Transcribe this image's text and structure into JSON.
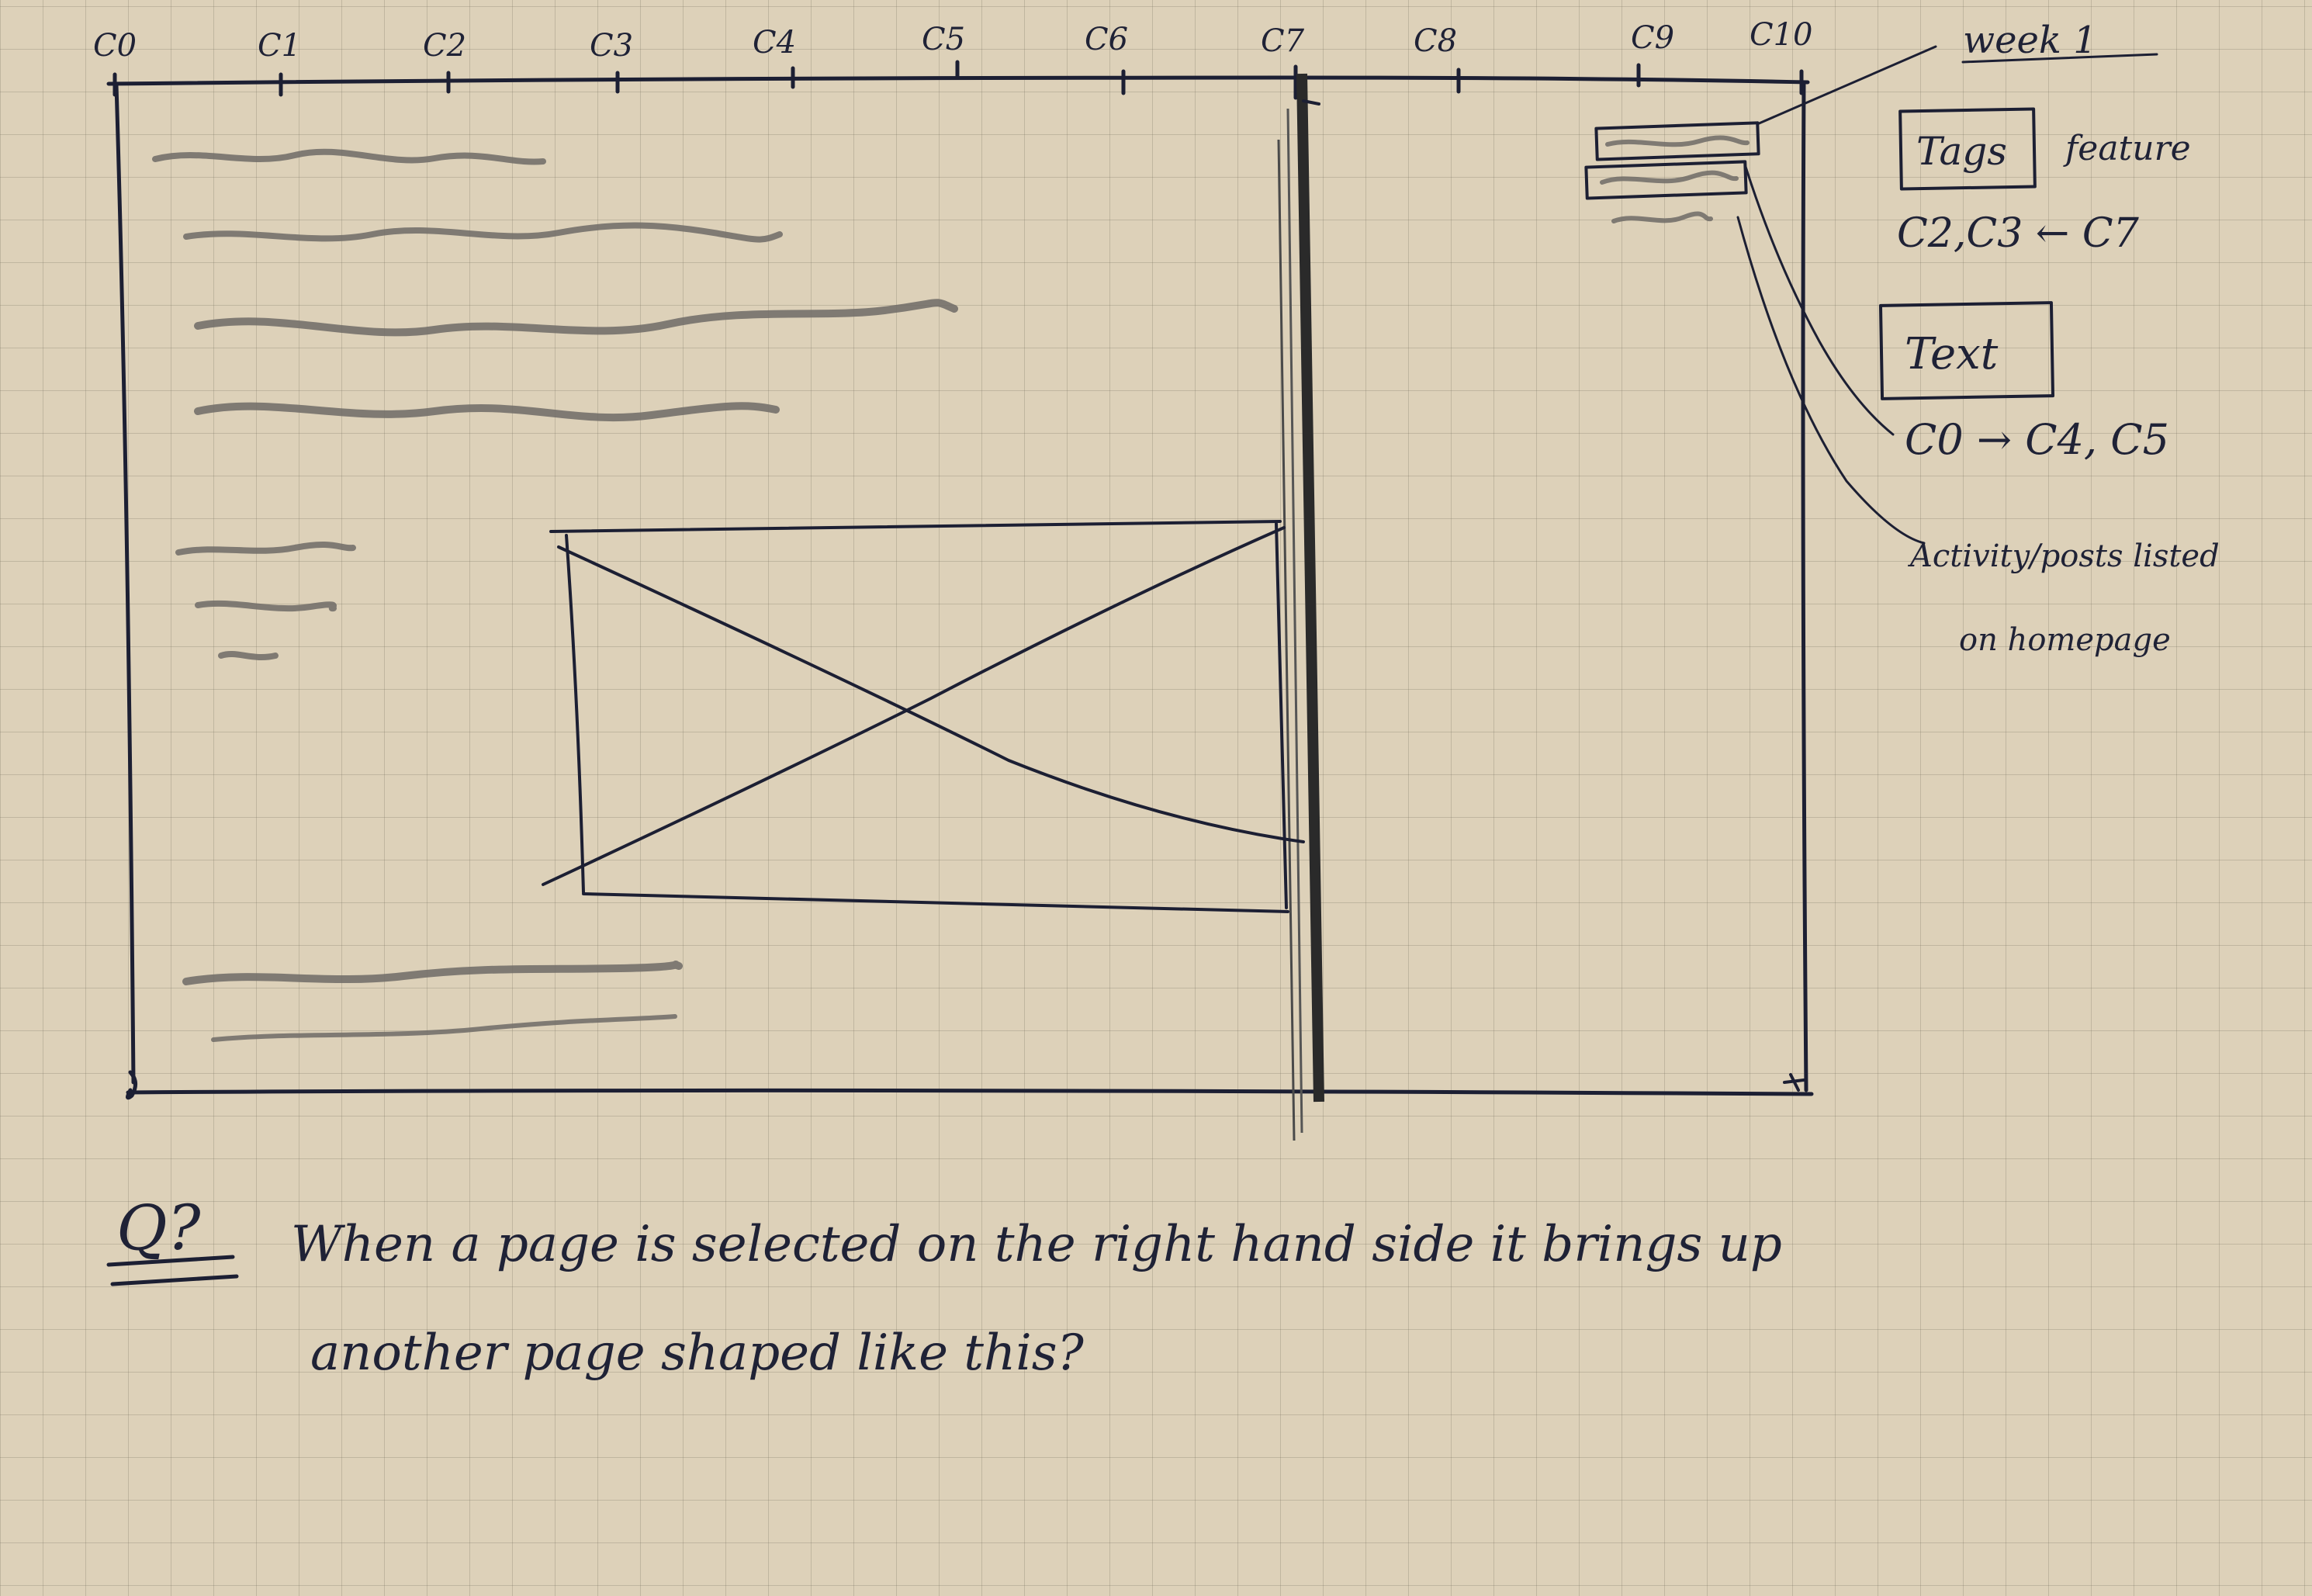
{
  "columns": [
    "C0",
    "C1",
    "C2",
    "C3",
    "C4",
    "C5",
    "C6",
    "C7",
    "C8",
    "C9",
    "C10"
  ],
  "annotations": {
    "week": "week 1",
    "tags_box": "Tags",
    "tags_extra": "feature",
    "tags_cols": "C2,C3 ← C7",
    "text_box": "Text",
    "text_cols": "C0 → C4, C5",
    "activity_line1": "Activity/posts listed",
    "activity_line2": "on homepage"
  },
  "footer_note": {
    "marker": "Q?",
    "line1": "When a page is selected on the right hand side it brings up",
    "line2": "another page shaped like this?"
  },
  "colors": {
    "paper": "#ddd1b9",
    "grid": "#8c8474",
    "pencil": "#3b3b3b",
    "ink": "#1c1f33"
  }
}
